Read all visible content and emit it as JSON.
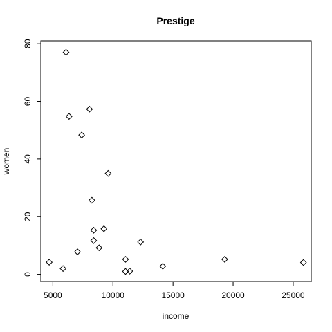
{
  "chart_data": {
    "type": "scatter",
    "title": "Prestige",
    "xlabel": "income",
    "ylabel": "women",
    "xlim": [
      4000,
      26500
    ],
    "ylim": [
      -2.5,
      81
    ],
    "x_ticks": [
      5000,
      10000,
      15000,
      20000,
      25000
    ],
    "y_ticks": [
      0,
      20,
      40,
      60,
      80
    ],
    "grid": false,
    "legend": "none",
    "marker": "open-diamond",
    "points": [
      {
        "x": 6100,
        "y": 77.0
      },
      {
        "x": 8050,
        "y": 57.3
      },
      {
        "x": 6350,
        "y": 54.8
      },
      {
        "x": 7400,
        "y": 48.3
      },
      {
        "x": 9600,
        "y": 35.0
      },
      {
        "x": 8250,
        "y": 25.7
      },
      {
        "x": 9250,
        "y": 15.8
      },
      {
        "x": 8400,
        "y": 15.3
      },
      {
        "x": 8400,
        "y": 11.7
      },
      {
        "x": 12300,
        "y": 11.2
      },
      {
        "x": 8850,
        "y": 9.2
      },
      {
        "x": 7050,
        "y": 7.8
      },
      {
        "x": 11050,
        "y": 5.2
      },
      {
        "x": 19300,
        "y": 5.2
      },
      {
        "x": 4700,
        "y": 4.2
      },
      {
        "x": 25850,
        "y": 4.1
      },
      {
        "x": 14150,
        "y": 2.8
      },
      {
        "x": 5850,
        "y": 2.0
      },
      {
        "x": 11050,
        "y": 1.0
      },
      {
        "x": 11400,
        "y": 1.1
      }
    ]
  }
}
